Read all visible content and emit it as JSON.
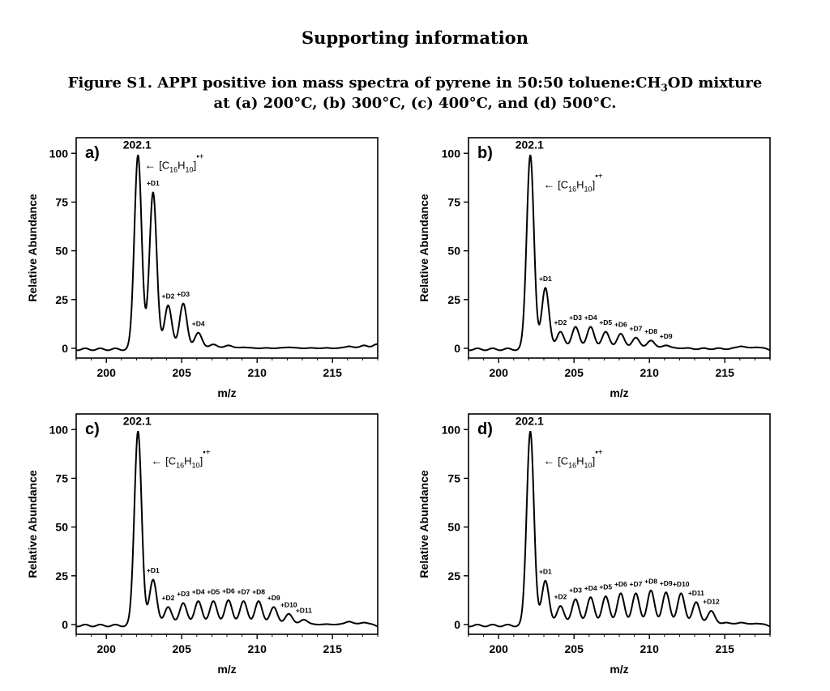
{
  "page": {
    "title": "Supporting information",
    "caption_line1_pre": "Figure S1. APPI positive ion mass spectra of pyrene in 50:50 toluene:CH",
    "caption_line1_sub": "3",
    "caption_line1_post": "OD mixture",
    "caption_line2": "at  (a) 200°C, (b) 300°C, (c) 400°C, and (d) 500°C."
  },
  "ion_label": {
    "arrow": "←",
    "c": "[C",
    "c_sub": "16",
    "h": "H",
    "h_sub": "10",
    "close": "]",
    "charge": "•+"
  },
  "chart_data": [
    {
      "type": "line",
      "panel": "a)",
      "xlabel": "m/z",
      "ylabel": "Relative Abundance",
      "xlim": [
        198,
        218
      ],
      "ylim": [
        -5,
        108
      ],
      "xticks": [
        200,
        205,
        210,
        215
      ],
      "yticks": [
        0,
        25,
        50,
        75,
        100
      ],
      "main_peak_label": "202.1",
      "peaks": [
        {
          "x": 202.1,
          "y": 100
        },
        {
          "x": 203.1,
          "y": 81,
          "label": "+D1"
        },
        {
          "x": 204.1,
          "y": 23,
          "label": "+D2"
        },
        {
          "x": 205.1,
          "y": 24,
          "label": "+D3"
        },
        {
          "x": 206.1,
          "y": 9,
          "label": "+D4"
        },
        {
          "x": 207.1,
          "y": 3
        },
        {
          "x": 208.1,
          "y": 2.5
        },
        {
          "x": 209.1,
          "y": 1.5
        },
        {
          "x": 210.1,
          "y": 1
        },
        {
          "x": 211.1,
          "y": 1
        },
        {
          "x": 212.1,
          "y": 1.5
        },
        {
          "x": 213.1,
          "y": 1
        },
        {
          "x": 214.1,
          "y": 1
        },
        {
          "x": 215.1,
          "y": 1
        },
        {
          "x": 216.1,
          "y": 2
        },
        {
          "x": 217.1,
          "y": 2.5
        },
        {
          "x": 218.0,
          "y": 3
        }
      ]
    },
    {
      "type": "line",
      "panel": "b)",
      "xlabel": "m/z",
      "ylabel": "Relative Abundance",
      "xlim": [
        198,
        218
      ],
      "ylim": [
        -5,
        108
      ],
      "xticks": [
        200,
        205,
        210,
        215
      ],
      "yticks": [
        0,
        25,
        50,
        75,
        100
      ],
      "main_peak_label": "202.1",
      "peaks": [
        {
          "x": 202.1,
          "y": 100
        },
        {
          "x": 203.1,
          "y": 32,
          "label": "+D1"
        },
        {
          "x": 204.1,
          "y": 9.5,
          "label": "+D2"
        },
        {
          "x": 205.1,
          "y": 12,
          "label": "+D3"
        },
        {
          "x": 206.1,
          "y": 12,
          "label": "+D4"
        },
        {
          "x": 207.1,
          "y": 9.5,
          "label": "+D5"
        },
        {
          "x": 208.1,
          "y": 8.5,
          "label": "+D6"
        },
        {
          "x": 209.1,
          "y": 6.5,
          "label": "+D7"
        },
        {
          "x": 210.1,
          "y": 5,
          "label": "+D8"
        },
        {
          "x": 211.1,
          "y": 2.5,
          "label": "+D9"
        },
        {
          "x": 212.1,
          "y": 1
        },
        {
          "x": 213.1,
          "y": 0.5
        },
        {
          "x": 214.1,
          "y": 0.5
        },
        {
          "x": 215.1,
          "y": 0.5
        },
        {
          "x": 216.1,
          "y": 2
        },
        {
          "x": 217.1,
          "y": 1.5
        }
      ]
    },
    {
      "type": "line",
      "panel": "c)",
      "xlabel": "m/z",
      "ylabel": "Relative Abundance",
      "xlim": [
        198,
        218
      ],
      "ylim": [
        -5,
        108
      ],
      "xticks": [
        200,
        205,
        210,
        215
      ],
      "yticks": [
        0,
        25,
        50,
        75,
        100
      ],
      "main_peak_label": "202.1",
      "peaks": [
        {
          "x": 202.1,
          "y": 100
        },
        {
          "x": 203.1,
          "y": 24,
          "label": "+D1"
        },
        {
          "x": 204.1,
          "y": 10,
          "label": "+D2"
        },
        {
          "x": 205.1,
          "y": 12,
          "label": "+D3"
        },
        {
          "x": 206.1,
          "y": 13,
          "label": "+D4"
        },
        {
          "x": 207.1,
          "y": 13,
          "label": "+D5"
        },
        {
          "x": 208.1,
          "y": 13.5,
          "label": "+D6"
        },
        {
          "x": 209.1,
          "y": 13,
          "label": "+D7"
        },
        {
          "x": 210.1,
          "y": 13,
          "label": "+D8"
        },
        {
          "x": 211.1,
          "y": 10,
          "label": "+D9"
        },
        {
          "x": 212.1,
          "y": 6.5,
          "label": "+D10"
        },
        {
          "x": 213.1,
          "y": 3.5,
          "label": "+D11"
        },
        {
          "x": 214.1,
          "y": 1
        },
        {
          "x": 215.1,
          "y": 1
        },
        {
          "x": 216.1,
          "y": 2.5
        },
        {
          "x": 217.1,
          "y": 2
        }
      ]
    },
    {
      "type": "line",
      "panel": "d)",
      "xlabel": "m/z",
      "ylabel": "Relative Abundance",
      "xlim": [
        198,
        218
      ],
      "ylim": [
        -5,
        108
      ],
      "xticks": [
        200,
        205,
        210,
        215
      ],
      "yticks": [
        0,
        25,
        50,
        75,
        100
      ],
      "main_peak_label": "202.1",
      "peaks": [
        {
          "x": 202.1,
          "y": 100
        },
        {
          "x": 203.1,
          "y": 23.5,
          "label": "+D1"
        },
        {
          "x": 204.1,
          "y": 10.5,
          "label": "+D2"
        },
        {
          "x": 205.1,
          "y": 14,
          "label": "+D3"
        },
        {
          "x": 206.1,
          "y": 15,
          "label": "+D4"
        },
        {
          "x": 207.1,
          "y": 15.5,
          "label": "+D5"
        },
        {
          "x": 208.1,
          "y": 17,
          "label": "+D6"
        },
        {
          "x": 209.1,
          "y": 17,
          "label": "+D7"
        },
        {
          "x": 210.1,
          "y": 18.5,
          "label": "+D8"
        },
        {
          "x": 211.1,
          "y": 17.5,
          "label": "+D9"
        },
        {
          "x": 212.1,
          "y": 17,
          "label": "+D10"
        },
        {
          "x": 213.1,
          "y": 12.5,
          "label": "+D11"
        },
        {
          "x": 214.1,
          "y": 8,
          "label": "+D12"
        },
        {
          "x": 215.1,
          "y": 2
        },
        {
          "x": 216.1,
          "y": 2
        },
        {
          "x": 217.1,
          "y": 1.5
        }
      ]
    }
  ]
}
